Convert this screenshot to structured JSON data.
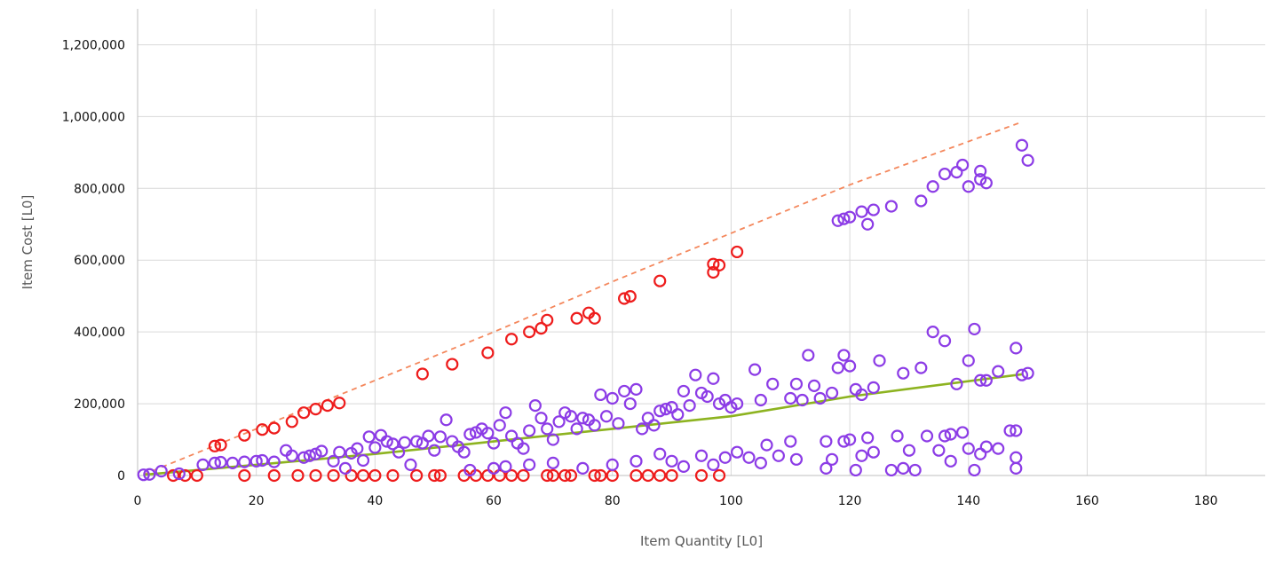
{
  "chart_data": {
    "type": "scatter",
    "xlabel": "Item Quantity [L0]",
    "ylabel": "Item Cost [L0]",
    "xlim": [
      0,
      190
    ],
    "ylim": [
      0,
      1300000
    ],
    "x_ticks": [
      0,
      20,
      40,
      60,
      80,
      100,
      120,
      140,
      160,
      180
    ],
    "y_ticks": [
      0,
      200000,
      400000,
      600000,
      800000,
      1000000,
      1200000
    ],
    "x_tick_labels": [
      "0",
      "20",
      "40",
      "60",
      "80",
      "100",
      "120",
      "140",
      "160",
      "180"
    ],
    "y_tick_labels": [
      "0",
      "200,000",
      "400,000",
      "600,000",
      "800,000",
      "1,000,000",
      "1,200,000"
    ],
    "grid": true,
    "legend": "none",
    "colors": {
      "red_series": "#ee1c1c",
      "purple_series": "#8c3ce6",
      "dashed_trend": "#f4875c",
      "solid_trend": "#8db320"
    },
    "series": [
      {
        "marker": "hollow-circle",
        "color": "#ee1c1c",
        "points": [
          [
            13,
            82000
          ],
          [
            14,
            85000
          ],
          [
            18,
            112000
          ],
          [
            21,
            128000
          ],
          [
            23,
            132000
          ],
          [
            26,
            150000
          ],
          [
            28,
            175000
          ],
          [
            30,
            185000
          ],
          [
            32,
            195000
          ],
          [
            34,
            202000
          ],
          [
            48,
            283000
          ],
          [
            53,
            310000
          ],
          [
            59,
            342000
          ],
          [
            63,
            380000
          ],
          [
            66,
            400000
          ],
          [
            68,
            410000
          ],
          [
            69,
            433000
          ],
          [
            74,
            438000
          ],
          [
            76,
            453000
          ],
          [
            77,
            438000
          ],
          [
            82,
            493000
          ],
          [
            83,
            499000
          ],
          [
            88,
            542000
          ],
          [
            97,
            566000
          ],
          [
            97,
            589000
          ],
          [
            98,
            586000
          ],
          [
            101,
            623000
          ],
          [
            6,
            0
          ],
          [
            8,
            0
          ],
          [
            10,
            0
          ],
          [
            18,
            0
          ],
          [
            23,
            0
          ],
          [
            27,
            0
          ],
          [
            30,
            0
          ],
          [
            33,
            0
          ],
          [
            36,
            0
          ],
          [
            38,
            0
          ],
          [
            40,
            0
          ],
          [
            43,
            0
          ],
          [
            47,
            0
          ],
          [
            50,
            0
          ],
          [
            51,
            0
          ],
          [
            55,
            0
          ],
          [
            57,
            0
          ],
          [
            59,
            0
          ],
          [
            61,
            0
          ],
          [
            63,
            0
          ],
          [
            65,
            0
          ],
          [
            69,
            0
          ],
          [
            70,
            0
          ],
          [
            72,
            0
          ],
          [
            73,
            0
          ],
          [
            77,
            0
          ],
          [
            78,
            0
          ],
          [
            80,
            0
          ],
          [
            84,
            0
          ],
          [
            86,
            0
          ],
          [
            88,
            0
          ],
          [
            90,
            0
          ],
          [
            95,
            0
          ],
          [
            98,
            0
          ]
        ]
      },
      {
        "marker": "hollow-circle",
        "color": "#8c3ce6",
        "points": [
          [
            1,
            2000
          ],
          [
            2,
            3000
          ],
          [
            4,
            12000
          ],
          [
            7,
            5000
          ],
          [
            11,
            30000
          ],
          [
            13,
            35000
          ],
          [
            14,
            37000
          ],
          [
            16,
            35000
          ],
          [
            18,
            38000
          ],
          [
            20,
            40000
          ],
          [
            21,
            42000
          ],
          [
            23,
            38000
          ],
          [
            25,
            70000
          ],
          [
            26,
            55000
          ],
          [
            28,
            50000
          ],
          [
            29,
            55000
          ],
          [
            30,
            60000
          ],
          [
            31,
            68000
          ],
          [
            33,
            40000
          ],
          [
            34,
            65000
          ],
          [
            35,
            20000
          ],
          [
            36,
            62000
          ],
          [
            37,
            75000
          ],
          [
            38,
            42000
          ],
          [
            39,
            108000
          ],
          [
            40,
            78000
          ],
          [
            41,
            112000
          ],
          [
            42,
            95000
          ],
          [
            43,
            88000
          ],
          [
            44,
            65000
          ],
          [
            45,
            92000
          ],
          [
            46,
            30000
          ],
          [
            47,
            95000
          ],
          [
            48,
            90000
          ],
          [
            49,
            110000
          ],
          [
            50,
            70000
          ],
          [
            51,
            108000
          ],
          [
            52,
            155000
          ],
          [
            53,
            95000
          ],
          [
            54,
            80000
          ],
          [
            55,
            65000
          ],
          [
            56,
            115000
          ],
          [
            57,
            120000
          ],
          [
            58,
            130000
          ],
          [
            59,
            118000
          ],
          [
            60,
            90000
          ],
          [
            61,
            140000
          ],
          [
            62,
            175000
          ],
          [
            63,
            110000
          ],
          [
            64,
            90000
          ],
          [
            65,
            75000
          ],
          [
            66,
            125000
          ],
          [
            67,
            195000
          ],
          [
            68,
            160000
          ],
          [
            69,
            130000
          ],
          [
            70,
            100000
          ],
          [
            71,
            150000
          ],
          [
            72,
            175000
          ],
          [
            73,
            165000
          ],
          [
            74,
            130000
          ],
          [
            75,
            160000
          ],
          [
            76,
            155000
          ],
          [
            77,
            140000
          ],
          [
            78,
            225000
          ],
          [
            79,
            165000
          ],
          [
            80,
            215000
          ],
          [
            81,
            145000
          ],
          [
            82,
            235000
          ],
          [
            83,
            200000
          ],
          [
            84,
            240000
          ],
          [
            85,
            130000
          ],
          [
            86,
            160000
          ],
          [
            87,
            140000
          ],
          [
            88,
            180000
          ],
          [
            89,
            185000
          ],
          [
            90,
            190000
          ],
          [
            91,
            170000
          ],
          [
            92,
            235000
          ],
          [
            93,
            195000
          ],
          [
            94,
            280000
          ],
          [
            95,
            230000
          ],
          [
            96,
            220000
          ],
          [
            97,
            270000
          ],
          [
            98,
            200000
          ],
          [
            99,
            210000
          ],
          [
            100,
            190000
          ],
          [
            101,
            200000
          ],
          [
            104,
            295000
          ],
          [
            105,
            210000
          ],
          [
            107,
            255000
          ],
          [
            110,
            215000
          ],
          [
            111,
            255000
          ],
          [
            112,
            210000
          ],
          [
            113,
            335000
          ],
          [
            114,
            250000
          ],
          [
            115,
            215000
          ],
          [
            117,
            230000
          ],
          [
            118,
            300000
          ],
          [
            119,
            335000
          ],
          [
            120,
            305000
          ],
          [
            121,
            240000
          ],
          [
            122,
            225000
          ],
          [
            124,
            245000
          ],
          [
            125,
            320000
          ],
          [
            129,
            285000
          ],
          [
            132,
            300000
          ],
          [
            134,
            400000
          ],
          [
            136,
            375000
          ],
          [
            138,
            255000
          ],
          [
            140,
            320000
          ],
          [
            141,
            408000
          ],
          [
            142,
            265000
          ],
          [
            143,
            265000
          ],
          [
            145,
            290000
          ],
          [
            148,
            355000
          ],
          [
            149,
            280000
          ],
          [
            150,
            285000
          ],
          [
            118,
            710000
          ],
          [
            119,
            715000
          ],
          [
            120,
            720000
          ],
          [
            122,
            735000
          ],
          [
            123,
            700000
          ],
          [
            124,
            740000
          ],
          [
            127,
            750000
          ],
          [
            132,
            765000
          ],
          [
            134,
            805000
          ],
          [
            136,
            840000
          ],
          [
            138,
            845000
          ],
          [
            139,
            865000
          ],
          [
            140,
            805000
          ],
          [
            142,
            825000
          ],
          [
            142,
            848000
          ],
          [
            143,
            815000
          ],
          [
            149,
            920000
          ],
          [
            150,
            878000
          ],
          [
            56,
            15000
          ],
          [
            60,
            20000
          ],
          [
            62,
            25000
          ],
          [
            66,
            30000
          ],
          [
            70,
            35000
          ],
          [
            75,
            20000
          ],
          [
            80,
            30000
          ],
          [
            84,
            40000
          ],
          [
            88,
            60000
          ],
          [
            90,
            40000
          ],
          [
            92,
            25000
          ],
          [
            95,
            55000
          ],
          [
            97,
            30000
          ],
          [
            99,
            50000
          ],
          [
            101,
            65000
          ],
          [
            103,
            50000
          ],
          [
            105,
            35000
          ],
          [
            106,
            85000
          ],
          [
            108,
            55000
          ],
          [
            110,
            95000
          ],
          [
            111,
            45000
          ],
          [
            116,
            95000
          ],
          [
            117,
            45000
          ],
          [
            119,
            95000
          ],
          [
            120,
            100000
          ],
          [
            122,
            55000
          ],
          [
            123,
            105000
          ],
          [
            124,
            65000
          ],
          [
            127,
            15000
          ],
          [
            128,
            110000
          ],
          [
            130,
            70000
          ],
          [
            131,
            15000
          ],
          [
            133,
            110000
          ],
          [
            135,
            70000
          ],
          [
            136,
            110000
          ],
          [
            137,
            115000
          ],
          [
            139,
            120000
          ],
          [
            140,
            75000
          ],
          [
            141,
            15000
          ],
          [
            143,
            80000
          ],
          [
            145,
            75000
          ],
          [
            147,
            125000
          ],
          [
            148,
            125000
          ],
          [
            148,
            50000
          ],
          [
            148,
            20000
          ],
          [
            137,
            40000
          ],
          [
            142,
            60000
          ],
          [
            116,
            20000
          ],
          [
            121,
            15000
          ],
          [
            129,
            20000
          ]
        ]
      }
    ],
    "trendlines": [
      {
        "style": "dashed",
        "color": "#f4875c",
        "points": [
          [
            1,
            3000
          ],
          [
            20,
            130000
          ],
          [
            40,
            265000
          ],
          [
            60,
            400000
          ],
          [
            80,
            540000
          ],
          [
            100,
            675000
          ],
          [
            120,
            810000
          ],
          [
            149,
            985000
          ]
        ]
      },
      {
        "style": "solid",
        "color": "#8db320",
        "points": [
          [
            1,
            2000
          ],
          [
            20,
            30000
          ],
          [
            40,
            60000
          ],
          [
            60,
            95000
          ],
          [
            80,
            130000
          ],
          [
            100,
            165000
          ],
          [
            120,
            220000
          ],
          [
            149,
            282000
          ]
        ]
      }
    ]
  }
}
